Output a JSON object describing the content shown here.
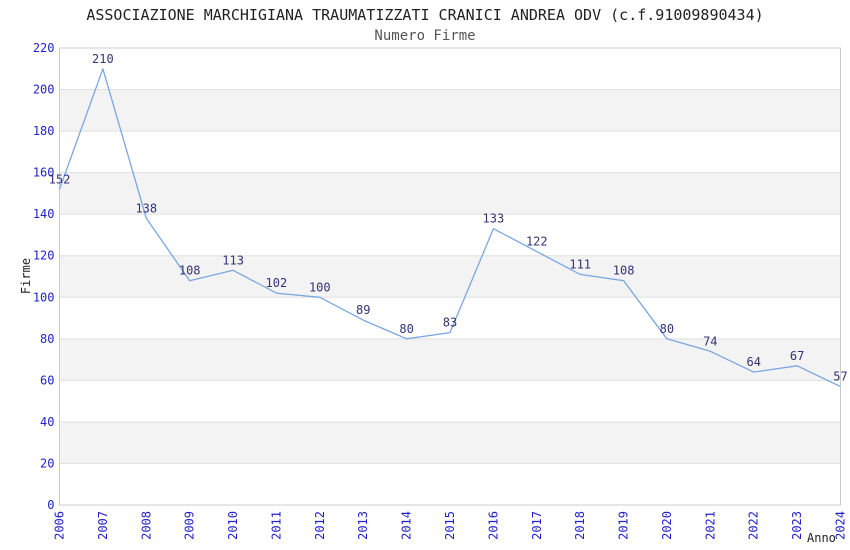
{
  "header": {
    "title": "ASSOCIAZIONE MARCHIGIANA TRAUMATIZZATI CRANICI ANDREA ODV (c.f.91009890434)",
    "subtitle": "Numero Firme"
  },
  "chart_data": {
    "type": "line",
    "title": "ASSOCIAZIONE MARCHIGIANA TRAUMATIZZATI CRANICI ANDREA ODV (c.f.91009890434)",
    "subtitle": "Numero Firme",
    "series_name": "Numero Firme",
    "x": [
      "2006",
      "2007",
      "2008",
      "2009",
      "2010",
      "2011",
      "2012",
      "2013",
      "2014",
      "2015",
      "2016",
      "2017",
      "2018",
      "2019",
      "2020",
      "2021",
      "2022",
      "2023",
      "2024"
    ],
    "values": [
      152,
      210,
      138,
      108,
      113,
      102,
      100,
      89,
      80,
      83,
      133,
      122,
      111,
      108,
      80,
      74,
      64,
      67,
      57
    ],
    "xlabel": "Anno",
    "ylabel": "Firme",
    "ylim": [
      0,
      220
    ],
    "ytick_step": 20,
    "yticks": [
      0,
      20,
      40,
      60,
      80,
      100,
      120,
      140,
      160,
      180,
      200,
      220
    ],
    "grid": "horizontal-gridlines-with-alternating-bands",
    "legend": "none",
    "point_labels_visible": true,
    "colors": {
      "line": "#7aa7e0",
      "tick_label": "#2222cc",
      "point_label": "#333377",
      "band": "#f3f3f3",
      "gridline": "#e1e1e1",
      "border": "#cccccc",
      "title": "#222222",
      "subtitle": "#555555",
      "axis_title": "#222222",
      "background": "#ffffff"
    }
  }
}
